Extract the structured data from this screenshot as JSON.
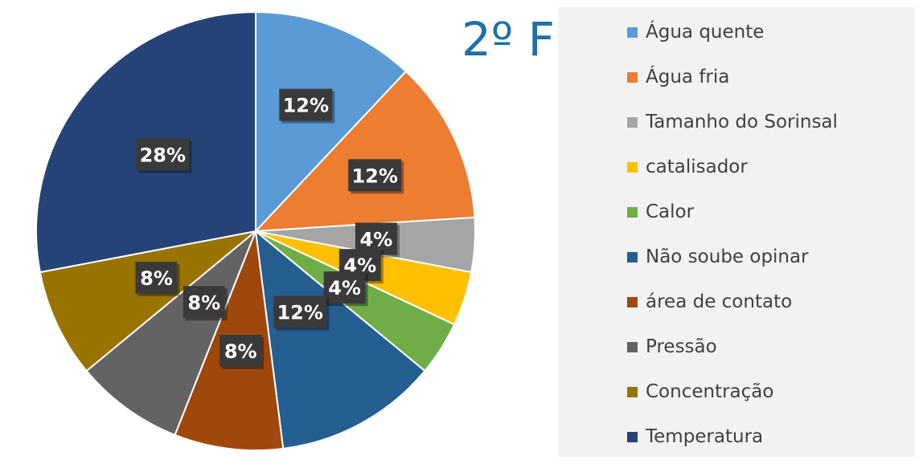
{
  "chart_data": {
    "type": "pie",
    "title": "2º F",
    "legend_position": "right",
    "slices": [
      {
        "name": "Água quente",
        "value": 12,
        "label": "12%",
        "color": "#5b9bd5"
      },
      {
        "name": "Água fria",
        "value": 12,
        "label": "12%",
        "color": "#ed7d31"
      },
      {
        "name": "Tamanho do Sorinsal",
        "value": 4,
        "label": "4%",
        "color": "#a5a5a5"
      },
      {
        "name": "catalisador",
        "value": 4,
        "label": "4%",
        "color": "#ffc000"
      },
      {
        "name": "Calor",
        "value": 4,
        "label": "4%",
        "color": "#70ad47"
      },
      {
        "name": "Não soube opinar",
        "value": 12,
        "label": "12%",
        "color": "#255e91"
      },
      {
        "name": "área de contato",
        "value": 8,
        "label": "8%",
        "color": "#9e480e"
      },
      {
        "name": "Pressão",
        "value": 8,
        "label": "8%",
        "color": "#636363"
      },
      {
        "name": "Concentração",
        "value": 8,
        "label": "8%",
        "color": "#997300"
      },
      {
        "name": "Temperatura",
        "value": 28,
        "label": "28%",
        "color": "#264478"
      }
    ]
  }
}
